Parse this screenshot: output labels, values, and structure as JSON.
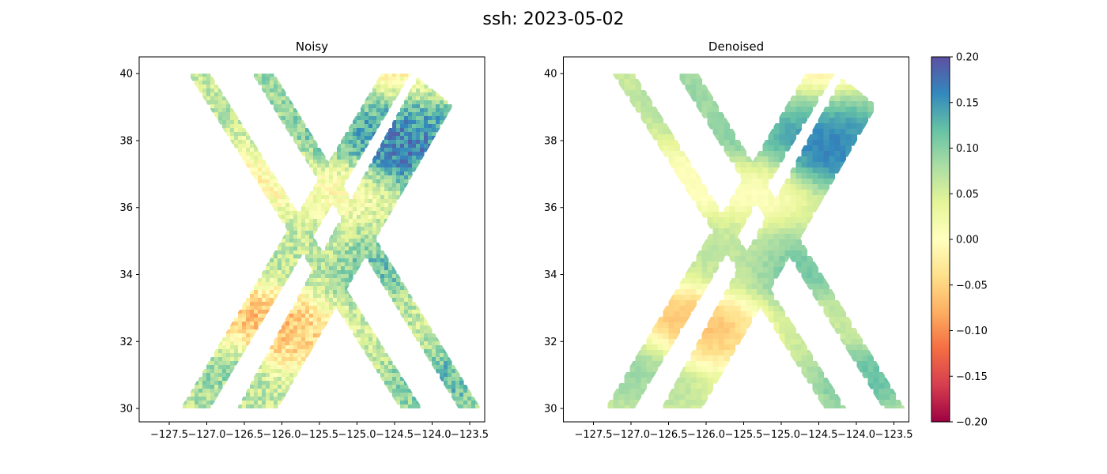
{
  "figure": {
    "title": "ssh: 2023-05-02"
  },
  "chart_data": [
    {
      "type": "heatmap",
      "title": "Noisy",
      "xlabel": "",
      "ylabel": "",
      "xlim": [
        -127.9,
        -123.3
      ],
      "ylim": [
        29.6,
        40.5
      ],
      "xticks": [
        -127.5,
        -127.0,
        -126.5,
        -126.0,
        -125.5,
        -125.0,
        -124.5,
        -124.0,
        -123.5
      ],
      "xtick_labels": [
        "−127.5",
        "−127.0",
        "−126.5",
        "−126.0",
        "−125.5",
        "−125.0",
        "−124.5",
        "−124.0",
        "−123.5"
      ],
      "yticks": [
        30,
        32,
        34,
        36,
        38,
        40
      ],
      "ytick_labels": [
        "30",
        "32",
        "34",
        "36",
        "38",
        "40"
      ],
      "colormap": "Spectral",
      "vmin": -0.2,
      "vmax": 0.2,
      "grid": false,
      "swaths_lon_lat": [
        {
          "name": "descending-left",
          "polygon": [
            [
              -127.25,
              40.0
            ],
            [
              -126.95,
              40.0
            ],
            [
              -124.13,
              30.0
            ],
            [
              -124.43,
              30.0
            ]
          ]
        },
        {
          "name": "descending-right",
          "polygon": [
            [
              -126.4,
              40.0
            ],
            [
              -126.1,
              40.0
            ],
            [
              -123.35,
              30.0
            ],
            [
              -123.65,
              30.0
            ]
          ]
        },
        {
          "name": "ascending-left",
          "polygon": [
            [
              -127.35,
              30.0
            ],
            [
              -126.95,
              30.0
            ],
            [
              -124.28,
              40.0
            ],
            [
              -124.68,
              40.0
            ]
          ]
        },
        {
          "name": "ascending-right",
          "polygon": [
            [
              -126.6,
              30.0
            ],
            [
              -126.05,
              30.0
            ],
            [
              -123.72,
              39.05
            ],
            [
              -124.2,
              39.9
            ]
          ]
        }
      ],
      "features_lon_lat": [
        {
          "lon": -124.5,
          "lat": 37.7,
          "value": 0.2
        },
        {
          "lon": -124.3,
          "lat": 38.3,
          "value": 0.17
        },
        {
          "lon": -124.7,
          "lat": 39.0,
          "value": 0.14
        },
        {
          "lon": -125.4,
          "lat": 38.0,
          "value": 0.13
        },
        {
          "lon": -124.7,
          "lat": 34.1,
          "value": 0.13
        },
        {
          "lon": -123.9,
          "lat": 30.9,
          "value": 0.14
        },
        {
          "lon": -126.4,
          "lat": 32.7,
          "value": -0.09
        },
        {
          "lon": -125.9,
          "lat": 32.3,
          "value": -0.09
        },
        {
          "lon": -126.3,
          "lat": 36.8,
          "value": -0.02
        },
        {
          "lon": -125.3,
          "lat": 36.7,
          "value": -0.02
        },
        {
          "lon": -124.6,
          "lat": 40.0,
          "value": -0.08
        },
        {
          "lon": -126.1,
          "lat": 39.5,
          "value": 0.1
        },
        {
          "lon": -126.9,
          "lat": 31.2,
          "value": 0.1
        },
        {
          "lon": -125.8,
          "lat": 34.5,
          "value": 0.07
        },
        {
          "lon": -124.3,
          "lat": 32.5,
          "value": 0.06
        }
      ]
    },
    {
      "type": "heatmap",
      "title": "Denoised",
      "xlabel": "",
      "ylabel": "",
      "xlim": [
        -127.9,
        -123.3
      ],
      "ylim": [
        29.6,
        40.5
      ],
      "xticks": [
        -127.5,
        -127.0,
        -126.5,
        -126.0,
        -125.5,
        -125.0,
        -124.5,
        -124.0,
        -123.5
      ],
      "xtick_labels": [
        "−127.5",
        "−127.0",
        "−126.5",
        "−126.0",
        "−125.5",
        "−125.0",
        "−124.5",
        "−124.0",
        "−123.5"
      ],
      "yticks": [
        30,
        32,
        34,
        36,
        38,
        40
      ],
      "ytick_labels": [
        "30",
        "32",
        "34",
        "36",
        "38",
        "40"
      ],
      "colormap": "Spectral",
      "vmin": -0.2,
      "vmax": 0.2,
      "grid": false
    }
  ],
  "colorbar": {
    "vmin": -0.2,
    "vmax": 0.2,
    "ticks": [
      -0.2,
      -0.15,
      -0.1,
      -0.05,
      0.0,
      0.05,
      0.1,
      0.15,
      0.2
    ],
    "tick_labels": [
      "−0.20",
      "−0.15",
      "−0.10",
      "−0.05",
      "0.00",
      "0.05",
      "0.10",
      "0.15",
      "0.20"
    ],
    "colors": [
      "#9e0142",
      "#d53e4f",
      "#f46d43",
      "#fdae61",
      "#fee08b",
      "#ffffbf",
      "#e6f598",
      "#abdda4",
      "#66c2a5",
      "#3288bd",
      "#5e4fa2"
    ]
  }
}
